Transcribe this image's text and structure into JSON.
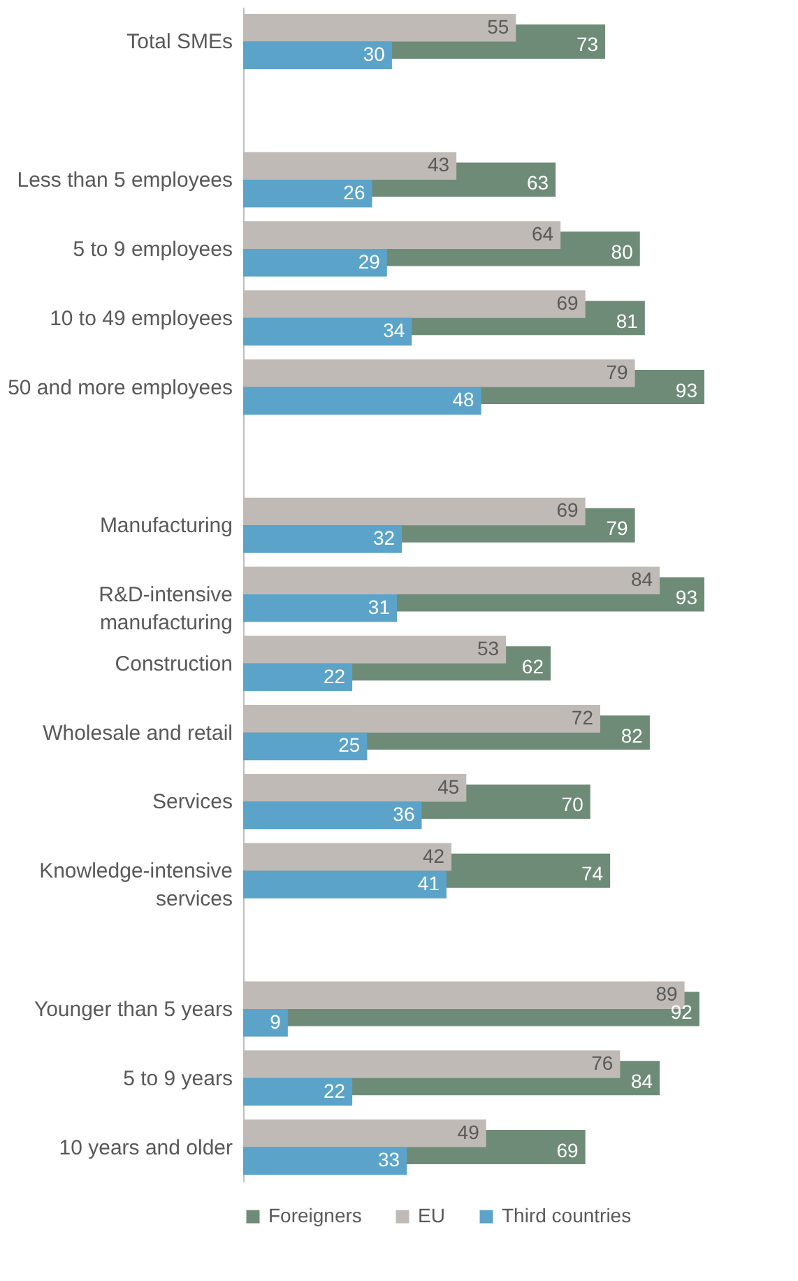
{
  "chart_data": {
    "type": "bar",
    "orientation": "horizontal",
    "data_labels": true,
    "legend": "bottom",
    "categories": [
      "Total SMEs",
      null,
      "Less than 5 employees",
      "5 to 9 employees",
      "10 to 49 employees",
      "50 and more employees",
      null,
      "Manufacturing",
      "R&D-intensive manufacturing",
      "Construction",
      "Wholesale and retail",
      "Services",
      "Knowledge-intensive services",
      null,
      "Younger than 5 years",
      "5 to 9 years",
      "10 years and older"
    ],
    "series": [
      {
        "name": "Foreigners",
        "color": "#6e8b78",
        "values": [
          73,
          null,
          63,
          80,
          81,
          93,
          null,
          79,
          93,
          62,
          82,
          70,
          74,
          null,
          92,
          84,
          69
        ]
      },
      {
        "name": "EU",
        "color": "#bfbab6",
        "values": [
          55,
          null,
          43,
          64,
          69,
          79,
          null,
          69,
          84,
          53,
          72,
          45,
          42,
          null,
          89,
          76,
          49
        ]
      },
      {
        "name": "Third countries",
        "color": "#5ba3c9",
        "values": [
          30,
          null,
          26,
          29,
          34,
          48,
          null,
          32,
          31,
          22,
          25,
          36,
          41,
          null,
          9,
          22,
          33
        ]
      }
    ]
  }
}
